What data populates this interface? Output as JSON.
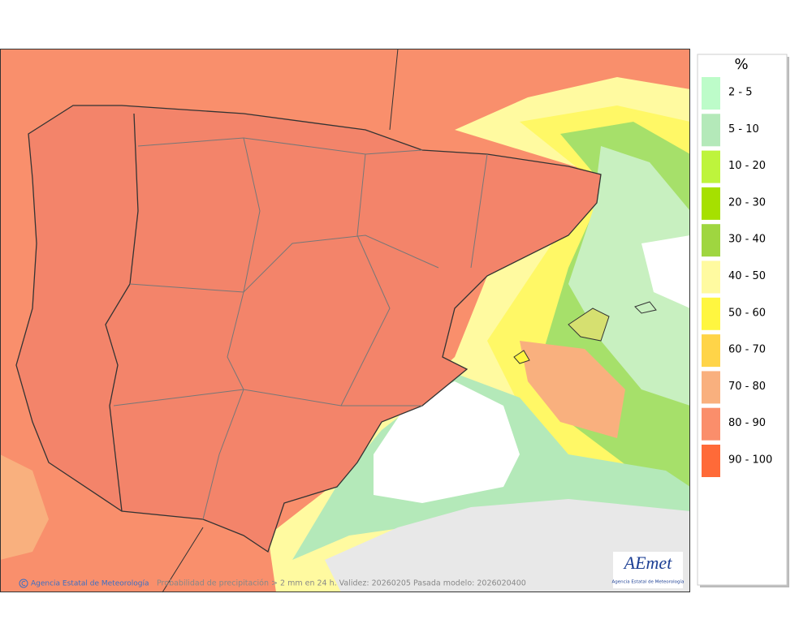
{
  "legend": {
    "title": "%",
    "items": [
      {
        "label": "2 - 5",
        "color": "#bdfcc9"
      },
      {
        "label": "5 - 10",
        "color": "#b4e9b9"
      },
      {
        "label": "10 - 20",
        "color": "#bef43c"
      },
      {
        "label": "20 - 30",
        "color": "#a6e000"
      },
      {
        "label": "30 - 40",
        "color": "#9fd640"
      },
      {
        "label": "40 - 50",
        "color": "#fffaa0"
      },
      {
        "label": "50 - 60",
        "color": "#fff640"
      },
      {
        "label": "60 - 70",
        "color": "#ffd448"
      },
      {
        "label": "70 - 80",
        "color": "#f9b07e"
      },
      {
        "label": "80 - 90",
        "color": "#fa8e6b"
      },
      {
        "label": "90 - 100",
        "color": "#ff6a38"
      }
    ]
  },
  "footer": {
    "credit": "Agencia Estatal de Meteorología",
    "caption": "Probabilidad de precipitación > 2 mm en 24 h. Validez: 20260205 Pasada modelo: 2026020400"
  },
  "logo": {
    "name": "AEmet",
    "subtitle": "Agencia Estatal de Meteorología"
  }
}
